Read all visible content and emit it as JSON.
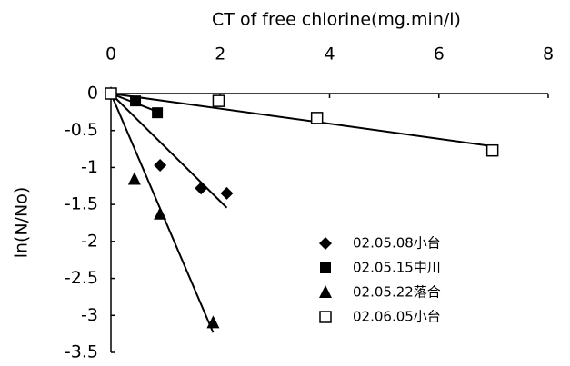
{
  "chart_data": {
    "type": "scatter",
    "xlabel": "CT of free  chlorine(mg.min/l)",
    "ylabel": "ln(N/No)",
    "xlim": [
      0,
      8
    ],
    "xticks": [
      0,
      2,
      4,
      6,
      8
    ],
    "ylim": [
      -3.5,
      0
    ],
    "yticks": [
      0,
      -0.5,
      -1,
      -1.5,
      -2,
      -2.5,
      -3,
      -3.5
    ],
    "trend_lines": true,
    "series": [
      {
        "name": "02.05.08小台",
        "color": "#000000",
        "marker": "diamond",
        "x": [
          0,
          0.9,
          1.65,
          2.12
        ],
        "values": [
          0,
          -0.97,
          -1.28,
          -1.35
        ]
      },
      {
        "name": "02.05.15中川",
        "color": "#000000",
        "marker": "square",
        "x": [
          0,
          0.45,
          0.85
        ],
        "values": [
          0,
          -0.1,
          -0.26
        ]
      },
      {
        "name": "02.05.22落合",
        "color": "#000000",
        "marker": "triangle",
        "x": [
          0,
          0.43,
          0.9,
          1.87
        ],
        "values": [
          0,
          -1.16,
          -1.63,
          -3.1
        ]
      },
      {
        "name": "02.06.05小台",
        "color": "#000000",
        "marker": "open-square",
        "x": [
          0,
          1.97,
          3.77,
          6.98
        ],
        "values": [
          0,
          -0.1,
          -0.33,
          -0.77
        ]
      }
    ]
  }
}
